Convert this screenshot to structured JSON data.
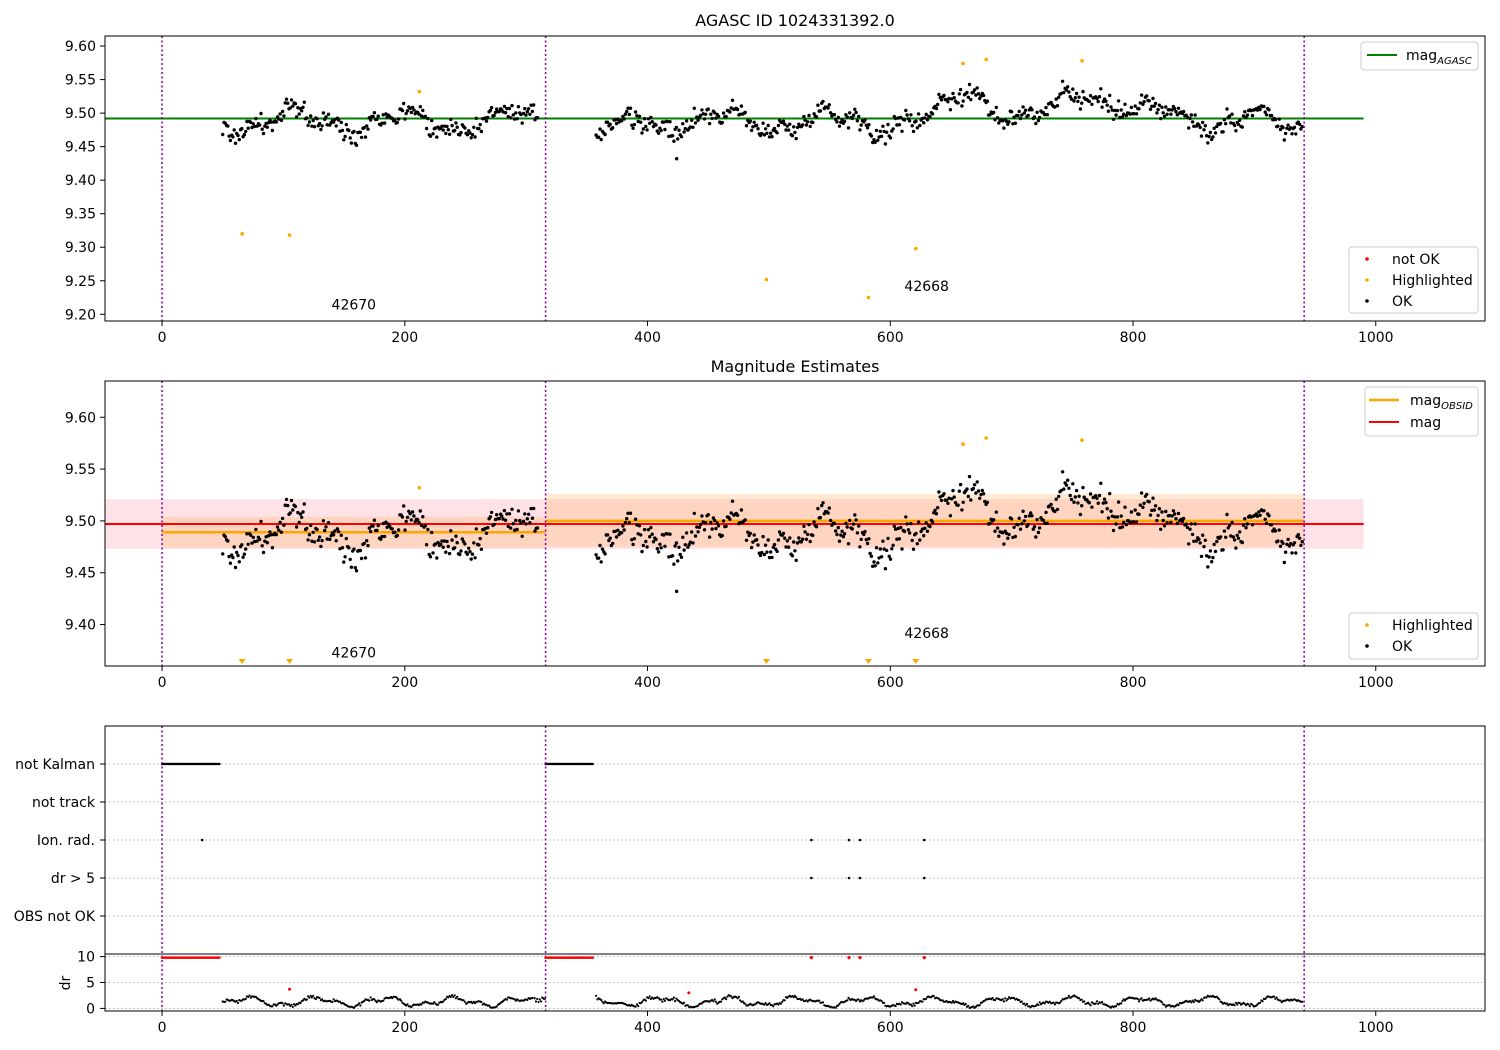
{
  "chart_data": [
    {
      "type": "scatter",
      "title": "AGASC ID 1024331392.0",
      "xlim": [
        -47,
        1090
      ],
      "ylim": [
        9.19,
        9.615
      ],
      "xticks": [
        0,
        200,
        400,
        600,
        800,
        1000
      ],
      "yticks": [
        9.2,
        9.25,
        9.3,
        9.35,
        9.4,
        9.45,
        9.5,
        9.55,
        9.6
      ],
      "obs_boundaries": [
        0,
        316,
        941
      ],
      "annotations": [
        {
          "text": "42670",
          "x": 158,
          "y": 9.207
        },
        {
          "text": "42668",
          "x": 630,
          "y": 9.235
        }
      ],
      "mag_agasc": 9.492,
      "mag_agasc_span": [
        0,
        990
      ],
      "legend_top": [
        {
          "label": "mag",
          "sub": "AGASC",
          "color": "#008000"
        }
      ],
      "legend_bottom": [
        {
          "label": "not OK",
          "color": "#ff0000"
        },
        {
          "label": "Highlighted",
          "color": "#ffa500"
        },
        {
          "label": "OK",
          "color": "#000000"
        }
      ],
      "highlighted": [
        [
          66,
          9.32
        ],
        [
          105,
          9.318
        ],
        [
          212,
          9.532
        ],
        [
          498,
          9.252
        ],
        [
          582,
          9.225
        ],
        [
          621,
          9.298
        ],
        [
          660,
          9.574
        ],
        [
          679,
          9.58
        ],
        [
          758,
          9.578
        ]
      ],
      "series_model": {
        "x_start": 50,
        "x_end": 940,
        "step": 1.05,
        "gap": [
          316,
          357
        ],
        "dropout": [
          [
            424,
            9.432
          ]
        ]
      }
    },
    {
      "type": "scatter",
      "title": "Magnitude Estimates",
      "xlim": [
        -47,
        1090
      ],
      "ylim": [
        9.36,
        9.635
      ],
      "xticks": [
        0,
        200,
        400,
        600,
        800,
        1000
      ],
      "yticks": [
        9.4,
        9.45,
        9.5,
        9.55,
        9.6
      ],
      "obs_boundaries": [
        0,
        316,
        941
      ],
      "annotations": [
        {
          "text": "42670",
          "x": 158,
          "y": 9.368
        },
        {
          "text": "42668",
          "x": 630,
          "y": 9.387
        }
      ],
      "mag": {
        "value": 9.497,
        "band": [
          9.473,
          9.521
        ],
        "span": [
          -47,
          990
        ],
        "color": "#ff0000"
      },
      "mag_obsid": [
        {
          "x": [
            0,
            316
          ],
          "value": 9.489,
          "band": [
            9.474,
            9.504
          ]
        },
        {
          "x": [
            316,
            941
          ],
          "value": 9.5,
          "band": [
            9.475,
            9.526
          ]
        }
      ],
      "legend_top": [
        {
          "label": "mag",
          "sub": "OBSID",
          "color": "#ffa500"
        },
        {
          "label": "mag",
          "sub": "",
          "color": "#ff0000"
        }
      ],
      "legend_bottom": [
        {
          "label": "Highlighted",
          "color": "#ffa500"
        },
        {
          "label": "OK",
          "color": "#000000"
        }
      ],
      "offscale_markers_x": [
        66,
        105,
        498,
        582,
        621
      ],
      "highlighted": [
        [
          212,
          9.532
        ],
        [
          660,
          9.574
        ],
        [
          679,
          9.58
        ],
        [
          758,
          9.578
        ]
      ]
    },
    {
      "type": "scatter",
      "title": "",
      "xlim": [
        -47,
        1090
      ],
      "flag_labels": [
        "not Kalman",
        "not track",
        "Ion. rad.",
        "dr > 5",
        "OBS not OK"
      ],
      "flags": {
        "not Kalman": [
          [
            0,
            48
          ],
          [
            316,
            355
          ]
        ],
        "Ion. rad.": [
          33,
          535,
          566,
          575,
          628
        ],
        "dr > 5": [
          535,
          566,
          575,
          628
        ]
      },
      "dr_ylabel": "dr",
      "dr_yticks": [
        0,
        5,
        10
      ],
      "dr_ylim": [
        -0.5,
        10.5
      ],
      "dr_high_red": [
        [
          0,
          48
        ],
        [
          316,
          355
        ],
        [
          535
        ],
        [
          566
        ],
        [
          575
        ],
        [
          628
        ]
      ],
      "dr_red_points": [
        [
          105,
          3.7
        ],
        [
          434,
          3.0
        ],
        [
          621,
          3.6
        ]
      ]
    }
  ]
}
